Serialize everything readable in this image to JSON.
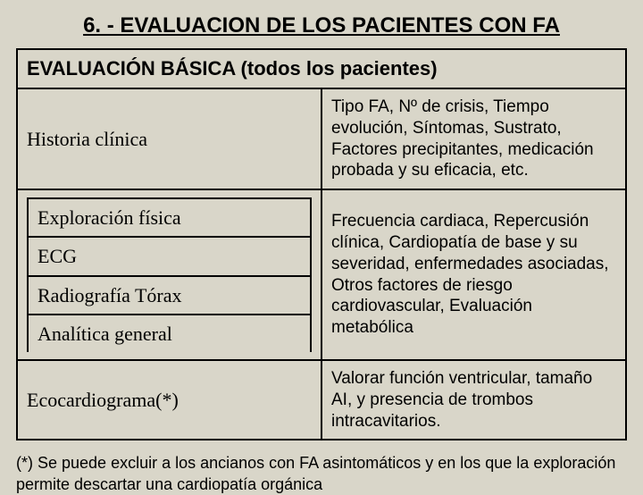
{
  "title": "6. - EVALUACION DE LOS PACIENTES CON FA",
  "table": {
    "header": "EVALUACIÓN BÁSICA (todos los pacientes)",
    "row1": {
      "left": "Historia clínica",
      "right": "Tipo FA, Nº de crisis,  Tiempo evolución, Síntomas, Sustrato, Factores precipitantes, medicación probada y su eficacia, etc."
    },
    "row2": {
      "left_items": {
        "a": "Exploración física",
        "b": "ECG",
        "c": "Radiografía Tórax",
        "d": "Analítica general"
      },
      "right": "Frecuencia cardiaca, Repercusión clínica, Cardiopatía de base y su severidad, enfermedades asociadas, Otros factores de riesgo cardiovascular, Evaluación metabólica"
    },
    "row3": {
      "left": "Ecocardiograma(*)",
      "right": "Valorar función ventricular, tamaño AI, y presencia de trombos intracavitarios."
    }
  },
  "footnote": "(*) Se puede excluir a los ancianos con FA asintomáticos y en los que la exploración permite descartar una cardiopatía orgánica",
  "style": {
    "background_color": "#d9d6c9",
    "border_color": "#000000",
    "title_fontsize": 24,
    "header_fontsize": 22,
    "leftcol_fontsize": 22,
    "rightcol_fontsize": 19,
    "footnote_fontsize": 18,
    "leftcol_font": "Times New Roman",
    "rightcol_font": "Arial"
  }
}
